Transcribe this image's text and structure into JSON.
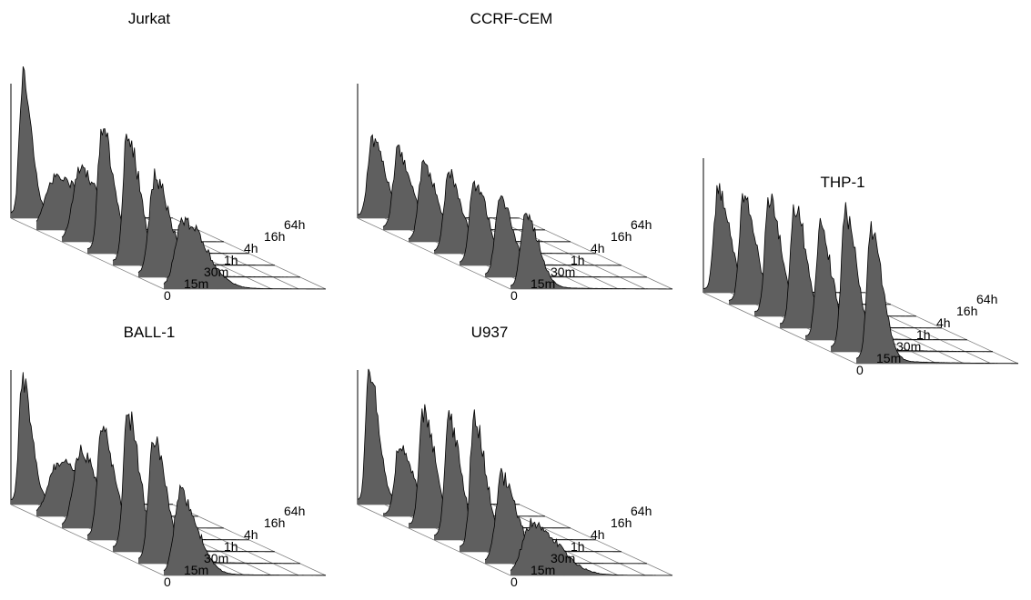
{
  "colors": {
    "fill": "#5f5f5f",
    "line": "#000000",
    "grid": "#7a7a7a",
    "background": "#ffffff"
  },
  "chart_data": [
    {
      "type": "area",
      "title": "Jurkat",
      "z_categories": [
        "0",
        "15m",
        "30m",
        "1h",
        "4h",
        "16h",
        "64h"
      ],
      "series": [
        {
          "label": "0",
          "peak": 1.0,
          "center": 0.07,
          "width": 0.035
        },
        {
          "label": "15m",
          "peak": 0.38,
          "center": 0.12,
          "width": 0.11
        },
        {
          "label": "30m",
          "peak": 0.52,
          "center": 0.11,
          "width": 0.075
        },
        {
          "label": "1h",
          "peak": 0.9,
          "center": 0.09,
          "width": 0.045
        },
        {
          "label": "4h",
          "peak": 0.97,
          "center": 0.09,
          "width": 0.045
        },
        {
          "label": "16h",
          "peak": 0.72,
          "center": 0.1,
          "width": 0.06
        },
        {
          "label": "64h",
          "peak": 0.5,
          "center": 0.12,
          "width": 0.085
        }
      ]
    },
    {
      "type": "area",
      "title": "CCRF-CEM",
      "z_categories": [
        "0",
        "15m",
        "30m",
        "1h",
        "4h",
        "16h",
        "64h"
      ],
      "series": [
        {
          "label": "0",
          "peak": 0.55,
          "center": 0.09,
          "width": 0.05
        },
        {
          "label": "15m",
          "peak": 0.57,
          "center": 0.09,
          "width": 0.05
        },
        {
          "label": "30m",
          "peak": 0.56,
          "center": 0.09,
          "width": 0.05
        },
        {
          "label": "1h",
          "peak": 0.57,
          "center": 0.09,
          "width": 0.05
        },
        {
          "label": "4h",
          "peak": 0.6,
          "center": 0.09,
          "width": 0.05
        },
        {
          "label": "16h",
          "peak": 0.57,
          "center": 0.09,
          "width": 0.05
        },
        {
          "label": "64h",
          "peak": 0.56,
          "center": 0.09,
          "width": 0.05
        }
      ]
    },
    {
      "type": "area",
      "title": "THP-1",
      "z_categories": [
        "0",
        "15m",
        "30m",
        "1h",
        "4h",
        "16h",
        "64h"
      ],
      "series": [
        {
          "label": "0",
          "peak": 0.73,
          "center": 0.09,
          "width": 0.045
        },
        {
          "label": "15m",
          "peak": 0.77,
          "center": 0.09,
          "width": 0.045
        },
        {
          "label": "30m",
          "peak": 0.84,
          "center": 0.09,
          "width": 0.045
        },
        {
          "label": "1h",
          "peak": 0.89,
          "center": 0.09,
          "width": 0.045
        },
        {
          "label": "4h",
          "peak": 0.8,
          "center": 0.09,
          "width": 0.045
        },
        {
          "label": "16h",
          "peak": 1.0,
          "center": 0.09,
          "width": 0.045
        },
        {
          "label": "64h",
          "peak": 0.97,
          "center": 0.09,
          "width": 0.045
        }
      ]
    },
    {
      "type": "area",
      "title": "BALL-1",
      "z_categories": [
        "0",
        "15m",
        "30m",
        "1h",
        "4h",
        "16h",
        "64h"
      ],
      "series": [
        {
          "label": "0",
          "peak": 0.92,
          "center": 0.07,
          "width": 0.035
        },
        {
          "label": "15m",
          "peak": 0.4,
          "center": 0.14,
          "width": 0.11
        },
        {
          "label": "30m",
          "peak": 0.55,
          "center": 0.11,
          "width": 0.07
        },
        {
          "label": "1h",
          "peak": 0.78,
          "center": 0.09,
          "width": 0.05
        },
        {
          "label": "4h",
          "peak": 1.0,
          "center": 0.09,
          "width": 0.045
        },
        {
          "label": "16h",
          "peak": 0.9,
          "center": 0.09,
          "width": 0.05
        },
        {
          "label": "64h",
          "peak": 0.6,
          "center": 0.1,
          "width": 0.065
        }
      ]
    },
    {
      "type": "area",
      "title": "U937",
      "z_categories": [
        "0",
        "15m",
        "30m",
        "1h",
        "4h",
        "16h",
        "64h"
      ],
      "series": [
        {
          "label": "0",
          "peak": 1.0,
          "center": 0.07,
          "width": 0.035
        },
        {
          "label": "15m",
          "peak": 0.52,
          "center": 0.1,
          "width": 0.05
        },
        {
          "label": "30m",
          "peak": 0.84,
          "center": 0.09,
          "width": 0.045
        },
        {
          "label": "1h",
          "peak": 0.86,
          "center": 0.09,
          "width": 0.045
        },
        {
          "label": "4h",
          "peak": 0.96,
          "center": 0.09,
          "width": 0.045
        },
        {
          "label": "16h",
          "peak": 0.63,
          "center": 0.1,
          "width": 0.06
        },
        {
          "label": "64h",
          "peak": 0.38,
          "center": 0.13,
          "width": 0.1
        }
      ]
    }
  ]
}
